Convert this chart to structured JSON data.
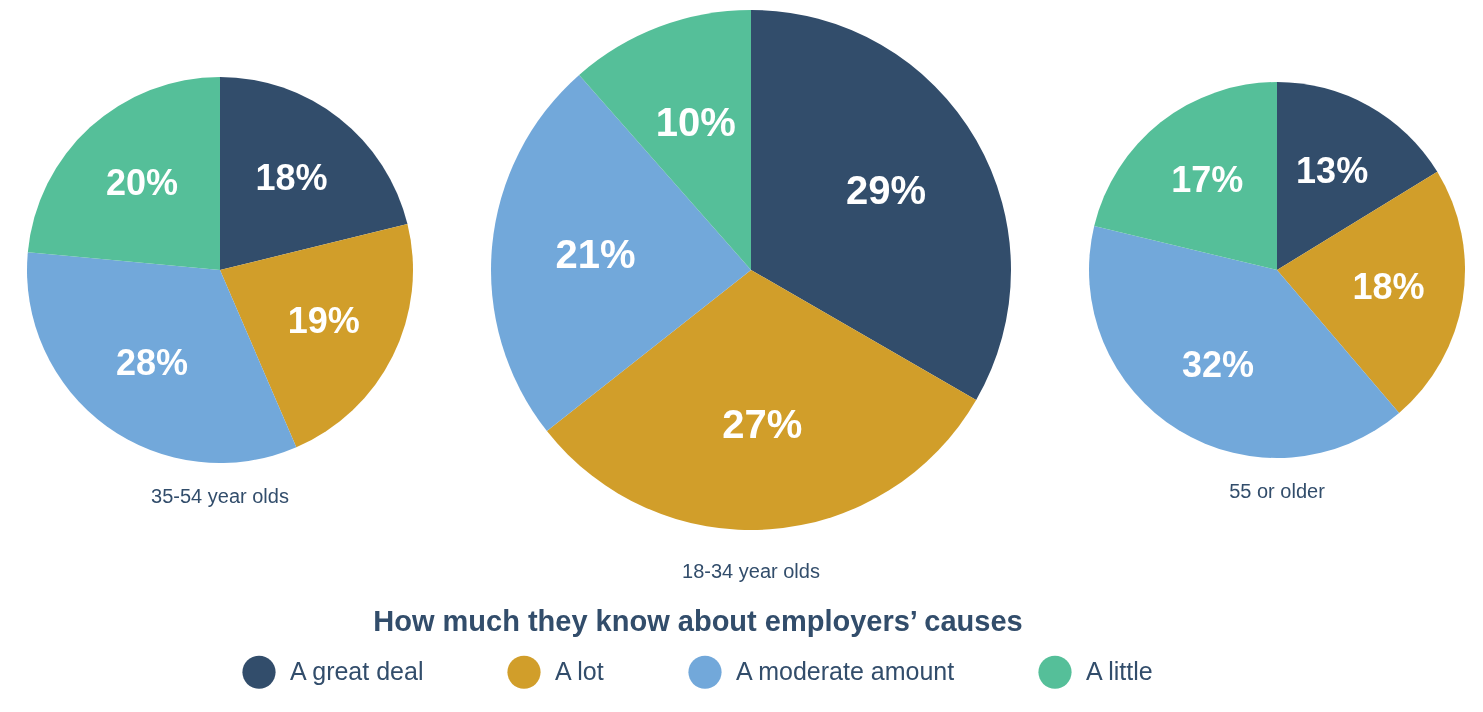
{
  "chart_data": [
    {
      "type": "pie",
      "title": "35-54 year olds",
      "categories": [
        "A great deal",
        "A lot",
        "A moderate amount",
        "A little"
      ],
      "values": [
        18,
        19,
        28,
        20
      ],
      "value_labels": [
        "18%",
        "19%",
        "28%",
        "20%"
      ],
      "colors": [
        "#324d6b",
        "#d19e2a",
        "#72a8da",
        "#55bf99"
      ],
      "legend_title": "How much they know about employers’ causes",
      "legend": "bottom"
    },
    {
      "type": "pie",
      "title": "18-34 year olds",
      "values": [
        29,
        27,
        21,
        10
      ],
      "value_labels": [
        "29%",
        "27%",
        "21%",
        "10%"
      ],
      "colors": [
        "#324d6b",
        "#d19e2a",
        "#72a8da",
        "#55bf99"
      ]
    },
    {
      "type": "pie",
      "title": "55 or older",
      "values": [
        13,
        18,
        32,
        17
      ],
      "value_labels": [
        "13%",
        "18%",
        "32%",
        "17%"
      ],
      "colors": [
        "#324d6b",
        "#d19e2a",
        "#72a8da",
        "#55bf99"
      ]
    }
  ]
}
